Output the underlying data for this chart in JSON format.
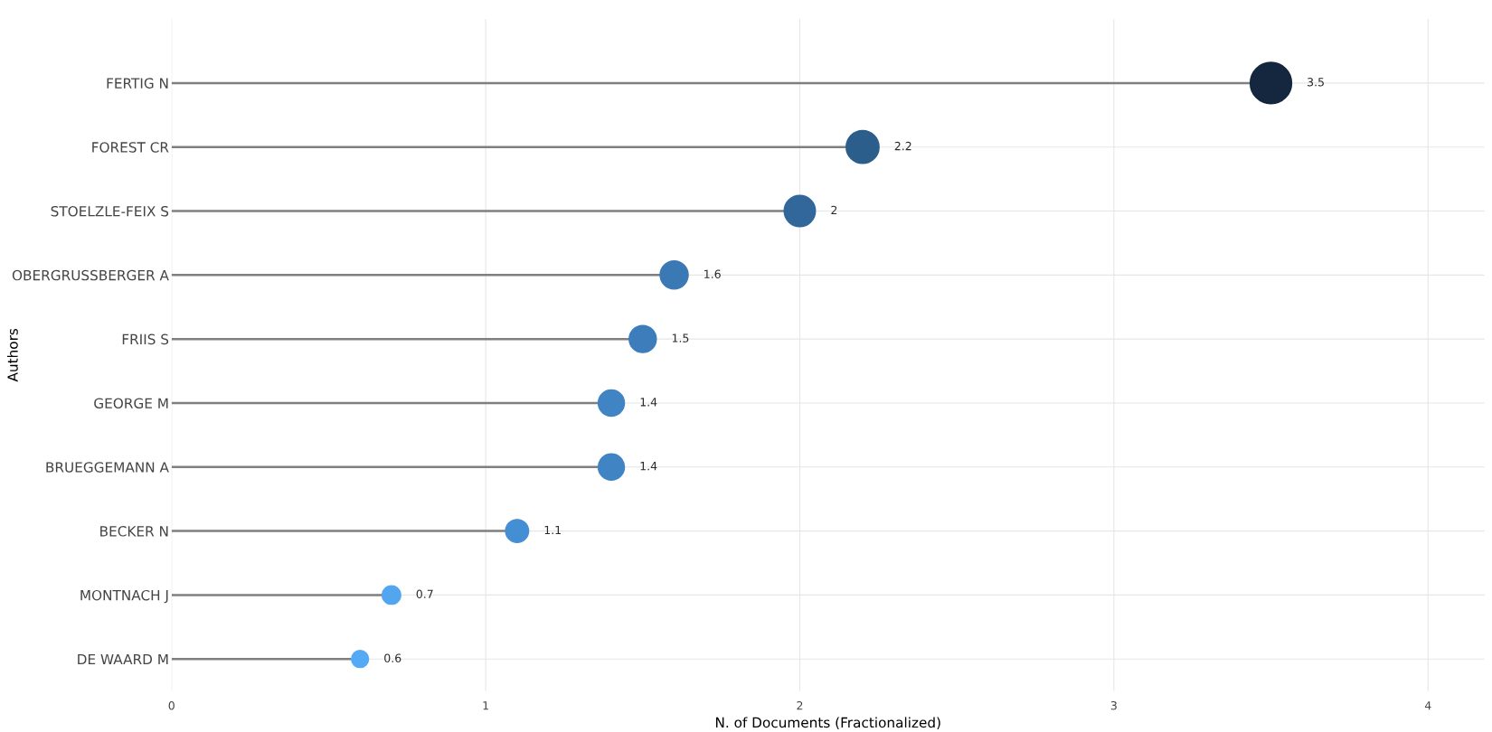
{
  "chart_data": {
    "type": "lollipop",
    "orientation": "horizontal",
    "xlabel": "N. of Documents (Fractionalized)",
    "ylabel": "Authors",
    "categories": [
      "FERTIG N",
      "FOREST CR",
      "STOELZLE-FEIX S",
      "OBERGRUSSBERGER A",
      "FRIIS S",
      "GEORGE M",
      "BRUEGGEMANN A",
      "BECKER N",
      "MONTNACH J",
      "DE WAARD M"
    ],
    "values": [
      3.5,
      2.2,
      2,
      1.6,
      1.5,
      1.4,
      1.4,
      1.1,
      0.7,
      0.6
    ],
    "colors": [
      "#14273f",
      "#2c5e8c",
      "#31679a",
      "#3b79b5",
      "#3d7dbb",
      "#4084c4",
      "#4084c4",
      "#448fd3",
      "#52a6ef",
      "#55aaf5"
    ],
    "sizes": [
      1,
      0.63,
      0.57,
      0.46,
      0.43,
      0.4,
      0.4,
      0.31,
      0.2,
      0.17
    ],
    "xlim": [
      0,
      4.18
    ],
    "xticks": [
      0,
      1,
      2,
      3,
      4
    ],
    "data_labels": true,
    "grid": true,
    "marker": "circle"
  }
}
